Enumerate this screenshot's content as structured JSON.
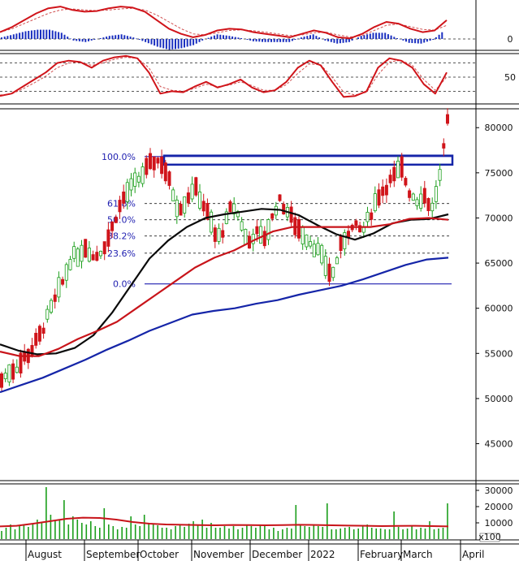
{
  "colors": {
    "up": "#1b9e1b",
    "down": "#d0141a",
    "ma_short": "#0a0a0a",
    "ma_mid": "#c8141a",
    "ma_long": "#1525a8",
    "fib": "#1f1fb0",
    "histogram": "#1a2fc0",
    "volume": "#1b9e1b",
    "grid_dashed": "#222222"
  },
  "chart_data": [
    {
      "type": "line",
      "panel": "macd",
      "y_tick_labels": [
        "0"
      ],
      "series": [
        {
          "role": "macd",
          "values": [
            0.2,
            0.35,
            0.55,
            0.75,
            0.9,
            0.95,
            0.85,
            0.8,
            0.82,
            0.9,
            0.95,
            0.92,
            0.8,
            0.55,
            0.3,
            0.15,
            0.05,
            0.12,
            0.25,
            0.3,
            0.28,
            0.2,
            0.15,
            0.1,
            0.05,
            0.15,
            0.25,
            0.18,
            0.05,
            0.02,
            0.15,
            0.35,
            0.5,
            0.45,
            0.3,
            0.2,
            0.25,
            0.55
          ]
        },
        {
          "role": "signal",
          "values": [
            0.2,
            0.3,
            0.45,
            0.6,
            0.75,
            0.85,
            0.88,
            0.85,
            0.83,
            0.85,
            0.88,
            0.9,
            0.85,
            0.7,
            0.5,
            0.3,
            0.15,
            0.12,
            0.18,
            0.25,
            0.27,
            0.24,
            0.2,
            0.15,
            0.1,
            0.12,
            0.18,
            0.2,
            0.12,
            0.06,
            0.1,
            0.25,
            0.4,
            0.44,
            0.36,
            0.28,
            0.26,
            0.4
          ]
        }
      ],
      "histogram": [
        0.02,
        0.06,
        0.1,
        0.12,
        0.12,
        0.08,
        -0.02,
        -0.04,
        0,
        0.04,
        0.06,
        0.02,
        -0.04,
        -0.1,
        -0.14,
        -0.12,
        -0.08,
        0,
        0.06,
        0.04,
        0.01,
        -0.03,
        -0.04,
        -0.04,
        -0.04,
        0.02,
        0.06,
        -0.02,
        -0.06,
        -0.04,
        0.04,
        0.08,
        0.08,
        0.01,
        -0.05,
        -0.06,
        -0.01,
        0.12
      ]
    },
    {
      "type": "line",
      "panel": "oscillator",
      "y_tick_labels": [
        "50"
      ],
      "series": [
        {
          "role": "main",
          "values": [
            10,
            15,
            30,
            45,
            60,
            80,
            85,
            82,
            70,
            85,
            92,
            95,
            90,
            60,
            15,
            20,
            18,
            30,
            40,
            28,
            35,
            45,
            28,
            18,
            22,
            40,
            70,
            85,
            75,
            40,
            8,
            10,
            20,
            70,
            90,
            85,
            70,
            35,
            15,
            60
          ]
        },
        {
          "role": "signal",
          "values": [
            12,
            14,
            25,
            38,
            52,
            70,
            80,
            82,
            75,
            80,
            88,
            92,
            90,
            70,
            30,
            22,
            20,
            26,
            35,
            30,
            33,
            40,
            32,
            22,
            22,
            34,
            58,
            78,
            76,
            50,
            18,
            12,
            18,
            55,
            82,
            86,
            75,
            45,
            22,
            50
          ]
        }
      ]
    },
    {
      "type": "line",
      "panel": "price",
      "y_tick_labels": [
        "45000",
        "50000",
        "55000",
        "60000",
        "65000",
        "70000",
        "75000",
        "80000"
      ],
      "ylim": [
        41000,
        82000
      ],
      "x_tick_labels": [
        "August",
        "September",
        "October",
        "November",
        "December",
        "2022",
        "February",
        "March",
        "April"
      ],
      "close": [
        52000,
        53000,
        53500,
        54500,
        55500,
        57000,
        59000,
        61000,
        63000,
        65500,
        66000,
        67000,
        65500,
        66500,
        68000,
        70500,
        72500,
        73500,
        74500,
        75500,
        76500,
        76000,
        73500,
        71000,
        72000,
        73500,
        72000,
        70000,
        67500,
        69000,
        71500,
        70000,
        67000,
        68500,
        67500,
        69500,
        72000,
        71000,
        69500,
        68500,
        67500,
        66500,
        65000,
        63500,
        66500,
        68500,
        69000,
        68500,
        70500,
        72500,
        73500,
        74500,
        75500,
        73000,
        72000,
        72500,
        71000,
        74500,
        80500
      ],
      "fibonacci": [
        {
          "label": "100.0%",
          "value": 76800
        },
        {
          "label": "61.8%",
          "value": 71600
        },
        {
          "label": "50.0%",
          "value": 69800
        },
        {
          "label": "38.2%",
          "value": 68000
        },
        {
          "label": "23.6%",
          "value": 66100
        },
        {
          "label": "0.0%",
          "value": 62700
        }
      ],
      "resistance_zone": [
        75900,
        76900
      ],
      "moving_averages": [
        {
          "role": "short",
          "values": [
            56000,
            55300,
            54900,
            55000,
            55600,
            57000,
            59500,
            62500,
            65500,
            67500,
            69000,
            70000,
            70400,
            70700,
            71000,
            70900,
            70300,
            69200,
            68200,
            67600,
            68300,
            69400,
            69800,
            69900,
            70400
          ]
        },
        {
          "role": "mid",
          "values": [
            55200,
            54700,
            54700,
            55500,
            56600,
            57500,
            58500,
            60000,
            61500,
            63000,
            64500,
            65600,
            66400,
            67500,
            68500,
            69000,
            69000,
            69000,
            69000,
            69000,
            69300,
            69900,
            70000,
            69800
          ]
        },
        {
          "role": "long",
          "values": [
            50700,
            51500,
            52300,
            53300,
            54300,
            55400,
            56400,
            57500,
            58400,
            59300,
            59700,
            60000,
            60500,
            60900,
            61500,
            62000,
            62500,
            63200,
            64000,
            64800,
            65400,
            65600
          ]
        }
      ]
    },
    {
      "type": "bar",
      "panel": "volume",
      "y_tick_labels": [
        "10000",
        "20000",
        "30000"
      ],
      "unit_label": "x100",
      "ylim": [
        0,
        33000
      ],
      "values": [
        5000,
        7000,
        9000,
        6000,
        8000,
        8500,
        7500,
        9500,
        12000,
        10000,
        32000,
        15000,
        11000,
        12000,
        24000,
        9000,
        14000,
        12000,
        10000,
        9000,
        11000,
        8000,
        7000,
        19000,
        9000,
        8000,
        6000,
        7500,
        7000,
        14000,
        9000,
        8000,
        15000,
        10000,
        9500,
        8500,
        7000,
        7000,
        6000,
        8000,
        8500,
        7500,
        9500,
        11000,
        9000,
        12000,
        7000,
        10000,
        7000,
        7000,
        8000,
        6500,
        8000,
        6000,
        7000,
        9000,
        8000,
        7000,
        8500,
        9000,
        6000,
        7000,
        5000,
        6000,
        7000,
        6500,
        21000,
        9000,
        8000,
        7500,
        8500,
        8000,
        7500,
        22000,
        6000,
        6000,
        6500,
        7000,
        7500,
        6000,
        6500,
        8000,
        9000,
        7000,
        6500,
        6500,
        6000,
        6000,
        17000,
        7500,
        6000,
        6500,
        8000,
        6000,
        7000,
        6500,
        11000,
        6000,
        6500,
        7000,
        22000
      ],
      "ma": [
        7800,
        8200,
        9500,
        11000,
        12500,
        13200,
        13000,
        12000,
        10500,
        9500,
        9000,
        8800,
        8600,
        8500,
        8700,
        8600,
        8500,
        8600,
        8800,
        8700,
        8500,
        8300,
        8200,
        8000,
        8100,
        8200,
        8000,
        7800
      ]
    }
  ]
}
